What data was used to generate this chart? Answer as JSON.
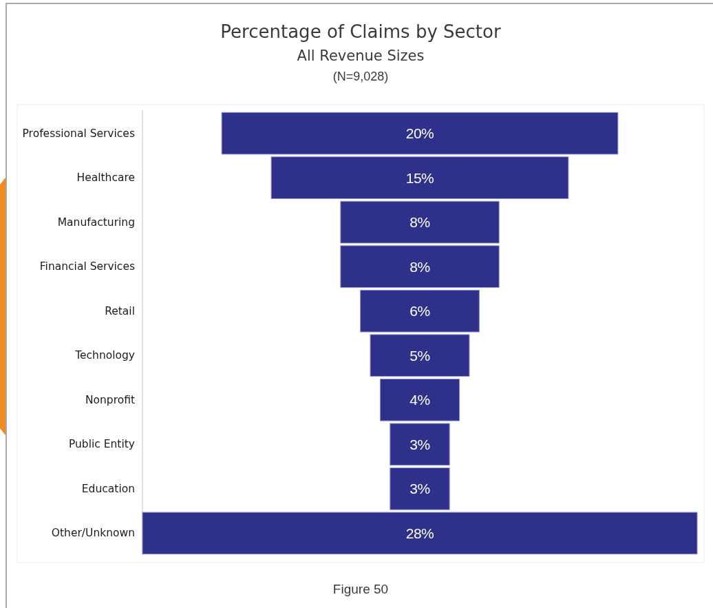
{
  "chart_data": {
    "type": "other",
    "title": "Percentage of Claims by Sector",
    "subtitle": "All Revenue Sizes",
    "annotations": [
      "(N=9,028)",
      "Figure 50"
    ],
    "categories": [
      "Professional Services",
      "Healthcare",
      "Manufacturing",
      "Financial Services",
      "Retail",
      "Technology",
      "Nonprofit",
      "Public Entity",
      "Education",
      "Other/Unknown"
    ],
    "values": [
      20,
      15,
      8,
      8,
      6,
      5,
      4,
      3,
      3,
      28
    ],
    "value_labels": [
      "20%",
      "15%",
      "8%",
      "8%",
      "6%",
      "5%",
      "4%",
      "3%",
      "3%",
      "28%"
    ],
    "color": "#2e3089"
  }
}
